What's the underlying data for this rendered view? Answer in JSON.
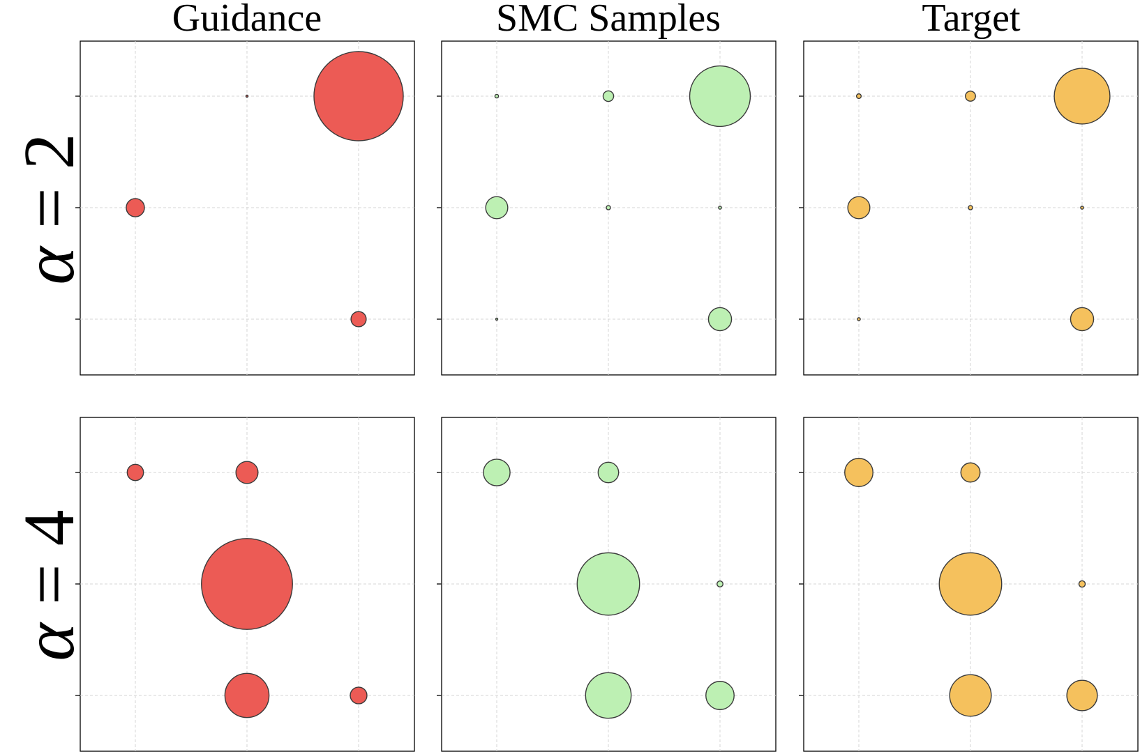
{
  "chart_data": {
    "type": "scatter",
    "description_size": "bubble area proportional to probability mass on a 3x3 grid",
    "x": [
      0,
      1,
      2
    ],
    "y": [
      0,
      1,
      2
    ],
    "columns": [
      "Guidance",
      "SMC Samples",
      "Target"
    ],
    "rows": [
      {
        "label_symbol": "α",
        "label_rest": " = 2"
      },
      {
        "label_symbol": "α",
        "label_rest": " = 4"
      }
    ],
    "colors": {
      "Guidance": "#ec5b55",
      "SMC Samples": "#bdf0b3",
      "Target": "#f5c15d",
      "edge": "#3a3a3a"
    },
    "size_scale_max": 0.18,
    "panels": [
      {
        "row": 0,
        "column": "Guidance",
        "points": [
          {
            "x": 1,
            "y": 2,
            "mass": 0.0001
          },
          {
            "x": 2,
            "y": 2,
            "mass": 0.18
          },
          {
            "x": 0,
            "y": 1,
            "mass": 0.0075
          },
          {
            "x": 2,
            "y": 0,
            "mass": 0.0052
          }
        ]
      },
      {
        "row": 0,
        "column": "SMC Samples",
        "points": [
          {
            "x": 0,
            "y": 2,
            "mass": 0.0003
          },
          {
            "x": 1,
            "y": 2,
            "mass": 0.0025
          },
          {
            "x": 2,
            "y": 2,
            "mass": 0.083
          },
          {
            "x": 0,
            "y": 1,
            "mass": 0.011
          },
          {
            "x": 1,
            "y": 1,
            "mass": 0.0004
          },
          {
            "x": 2,
            "y": 1,
            "mass": 0.0002
          },
          {
            "x": 0,
            "y": 0,
            "mass": 0.0001
          },
          {
            "x": 2,
            "y": 0,
            "mass": 0.012
          }
        ]
      },
      {
        "row": 0,
        "column": "Target",
        "points": [
          {
            "x": 0,
            "y": 2,
            "mass": 0.0005
          },
          {
            "x": 1,
            "y": 2,
            "mass": 0.0023
          },
          {
            "x": 2,
            "y": 2,
            "mass": 0.07
          },
          {
            "x": 0,
            "y": 1,
            "mass": 0.011
          },
          {
            "x": 1,
            "y": 1,
            "mass": 0.0004
          },
          {
            "x": 2,
            "y": 1,
            "mass": 0.0002
          },
          {
            "x": 0,
            "y": 0,
            "mass": 0.0002
          },
          {
            "x": 2,
            "y": 0,
            "mass": 0.012
          }
        ]
      },
      {
        "row": 1,
        "column": "Guidance",
        "points": [
          {
            "x": 0,
            "y": 2,
            "mass": 0.006
          },
          {
            "x": 1,
            "y": 2,
            "mass": 0.011
          },
          {
            "x": 1,
            "y": 1,
            "mass": 0.187
          },
          {
            "x": 1,
            "y": 0,
            "mass": 0.044
          },
          {
            "x": 2,
            "y": 0,
            "mass": 0.0063
          }
        ]
      },
      {
        "row": 1,
        "column": "SMC Samples",
        "points": [
          {
            "x": 0,
            "y": 2,
            "mass": 0.016
          },
          {
            "x": 1,
            "y": 2,
            "mass": 0.0095
          },
          {
            "x": 1,
            "y": 1,
            "mass": 0.088
          },
          {
            "x": 2,
            "y": 1,
            "mass": 0.0008
          },
          {
            "x": 1,
            "y": 0,
            "mass": 0.047
          },
          {
            "x": 2,
            "y": 0,
            "mass": 0.018
          }
        ]
      },
      {
        "row": 1,
        "column": "Target",
        "points": [
          {
            "x": 0,
            "y": 2,
            "mass": 0.018
          },
          {
            "x": 1,
            "y": 2,
            "mass": 0.0083
          },
          {
            "x": 1,
            "y": 1,
            "mass": 0.088
          },
          {
            "x": 2,
            "y": 1,
            "mass": 0.0009
          },
          {
            "x": 1,
            "y": 0,
            "mass": 0.039
          },
          {
            "x": 2,
            "y": 0,
            "mass": 0.021
          }
        ]
      }
    ]
  }
}
